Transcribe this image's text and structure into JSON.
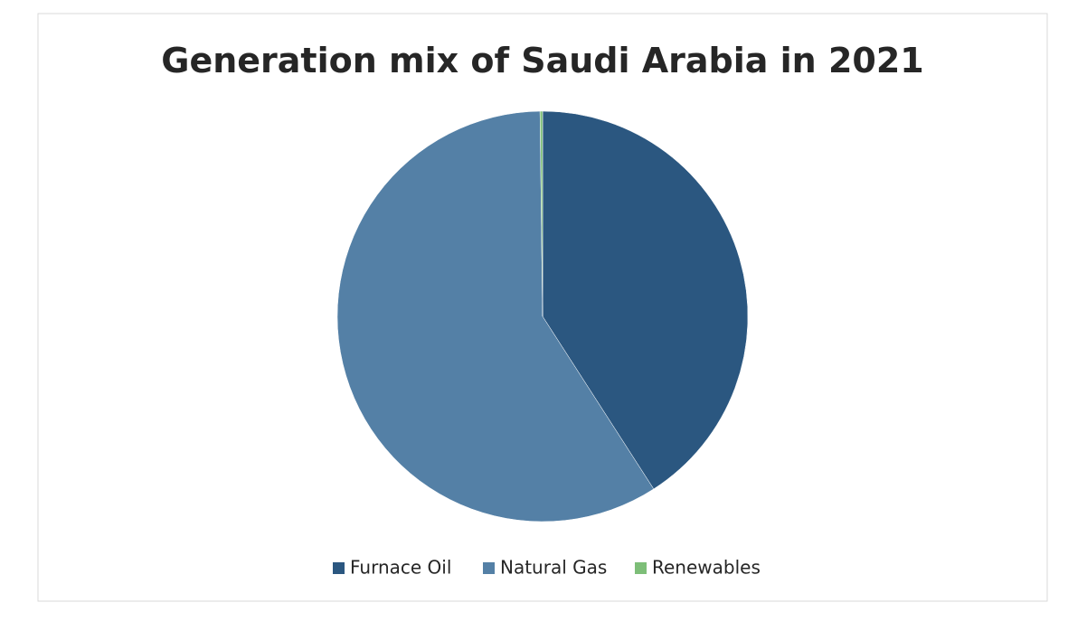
{
  "chart_data": {
    "type": "pie",
    "title": "Generation mix of Saudi Arabia in 2021",
    "categories": [
      "Furnace Oil",
      "Natural Gas",
      "Renewables"
    ],
    "values": [
      40.9,
      58.9,
      0.2
    ],
    "colors": [
      "#2b5780",
      "#5480a6",
      "#7dbe78"
    ],
    "legend": "bottom"
  }
}
